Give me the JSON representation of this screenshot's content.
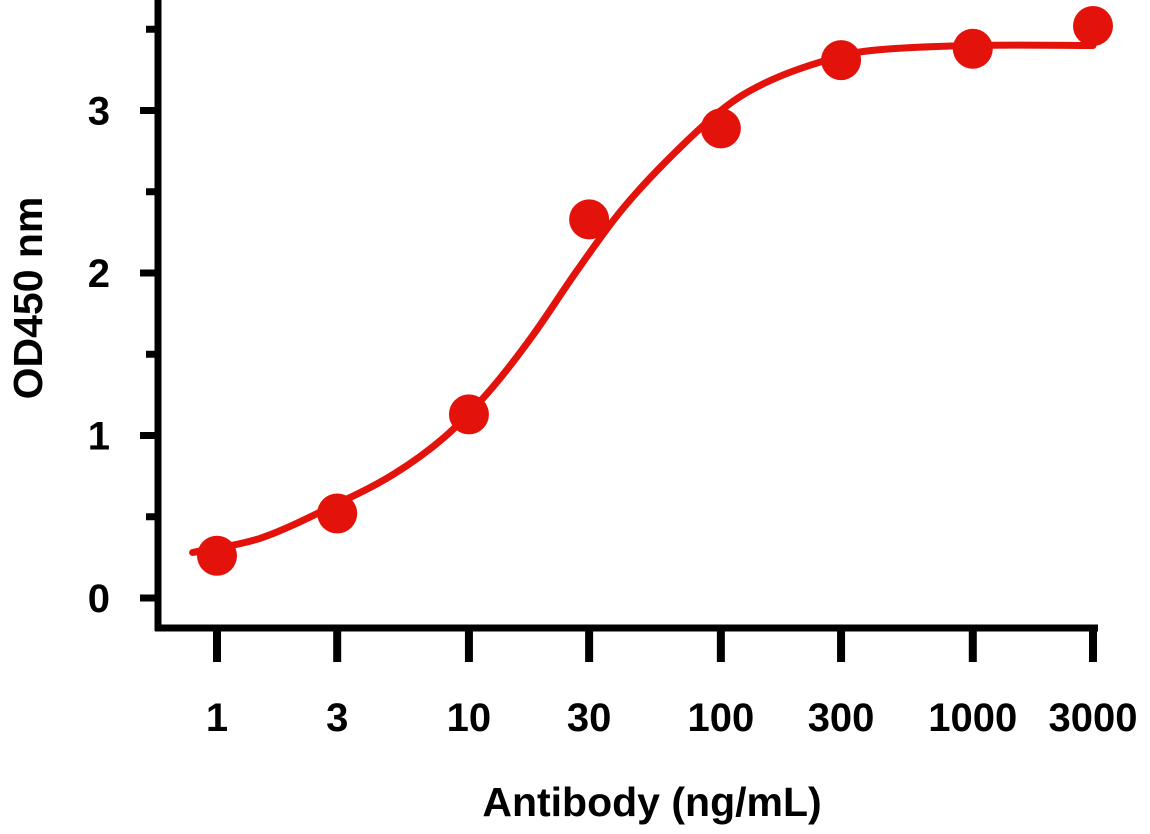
{
  "chart_data": {
    "type": "scatter",
    "xlabel": "Antibody (ng/mL)",
    "ylabel": "OD450 nm",
    "x_scale": "log",
    "x_ticks": [
      1,
      3,
      10,
      30,
      100,
      300,
      1000,
      3000
    ],
    "x_tick_labels": [
      "1",
      "3",
      "10",
      "30",
      "100",
      "300",
      "1000",
      "3000"
    ],
    "y_ticks": [
      0,
      1,
      2,
      3
    ],
    "y_tick_labels": [
      "0",
      "1",
      "2",
      "3"
    ],
    "y_minor_ticks": [
      0.5,
      1.5,
      2.5,
      3.5
    ],
    "xlim": [
      0.8,
      3200
    ],
    "ylim": [
      -0.1,
      3.62
    ],
    "grid": false,
    "color": "#e3120b",
    "series": [
      {
        "points": [
          {
            "x": 1,
            "y": 0.26
          },
          {
            "x": 3,
            "y": 0.52
          },
          {
            "x": 10,
            "y": 1.13
          },
          {
            "x": 30,
            "y": 2.33
          },
          {
            "x": 100,
            "y": 2.89
          },
          {
            "x": 300,
            "y": 3.31
          },
          {
            "x": 1000,
            "y": 3.38
          },
          {
            "x": 3000,
            "y": 3.52
          }
        ],
        "fit_curve": [
          {
            "x": 0.8,
            "y": 0.28
          },
          {
            "x": 1.5,
            "y": 0.37
          },
          {
            "x": 3,
            "y": 0.58
          },
          {
            "x": 5,
            "y": 0.76
          },
          {
            "x": 8,
            "y": 0.99
          },
          {
            "x": 12,
            "y": 1.27
          },
          {
            "x": 18,
            "y": 1.62
          },
          {
            "x": 27,
            "y": 2.02
          },
          {
            "x": 40,
            "y": 2.38
          },
          {
            "x": 60,
            "y": 2.68
          },
          {
            "x": 100,
            "y": 3.0
          },
          {
            "x": 150,
            "y": 3.17
          },
          {
            "x": 250,
            "y": 3.3
          },
          {
            "x": 400,
            "y": 3.37
          },
          {
            "x": 1000,
            "y": 3.4
          },
          {
            "x": 3000,
            "y": 3.4
          }
        ]
      }
    ]
  }
}
